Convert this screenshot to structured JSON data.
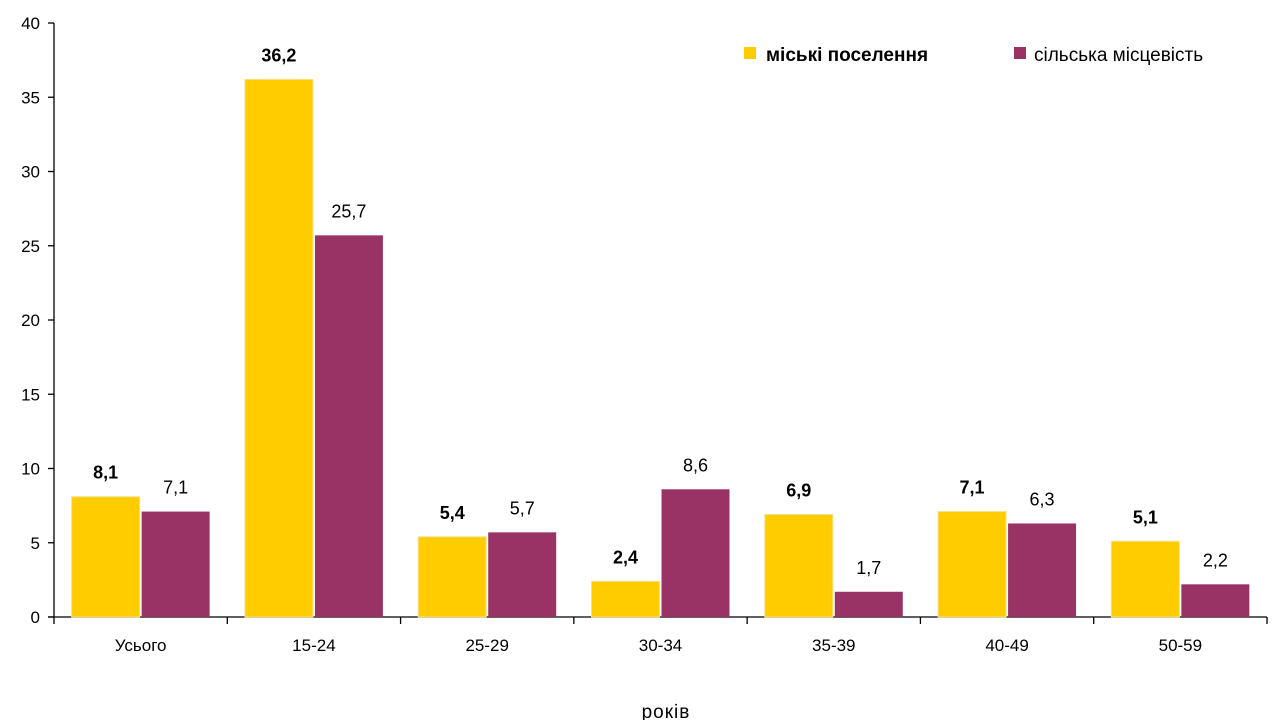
{
  "chart_data": {
    "type": "bar",
    "categories": [
      "Усього",
      "15-24",
      "25-29",
      "30-34",
      "35-39",
      "40-49",
      "50-59"
    ],
    "series": [
      {
        "name": "міські поселення",
        "values": [
          8.1,
          36.2,
          5.4,
          2.4,
          6.9,
          7.1,
          5.1
        ],
        "color": "#FFCC00",
        "labels": [
          "8,1",
          "36,2",
          "5,4",
          "2,4",
          "6,9",
          "7,1",
          "5,1"
        ],
        "label_weight": "bold"
      },
      {
        "name": "сільська місцевість",
        "values": [
          7.1,
          25.7,
          5.7,
          8.6,
          1.7,
          6.3,
          2.2
        ],
        "color": "#993366",
        "labels": [
          "7,1",
          "25,7",
          "5,7",
          "8,6",
          "1,7",
          "6,3",
          "2,2"
        ],
        "label_weight": "normal"
      }
    ],
    "ylim": [
      0,
      40
    ],
    "yticks": [
      "0",
      "5",
      "10",
      "15",
      "20",
      "25",
      "30",
      "35",
      "40"
    ],
    "xlabel": "років",
    "ylabel": "",
    "title": "",
    "legend_position": "top-right",
    "grid": false
  }
}
